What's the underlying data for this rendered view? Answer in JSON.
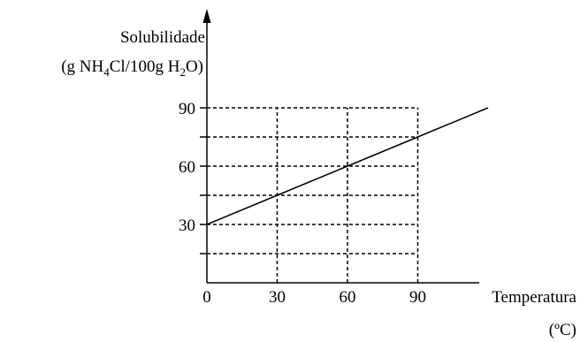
{
  "chart_data": {
    "type": "line",
    "y_title_line1": "Solubilidade",
    "y_title_line2": {
      "parts": [
        {
          "text": "(g NH",
          "sub": false
        },
        {
          "text": "4",
          "sub": true
        },
        {
          "text": "Cl/100g H",
          "sub": false
        },
        {
          "text": "2",
          "sub": true
        },
        {
          "text": "O)",
          "sub": false
        }
      ]
    },
    "xlabel": "Temperatura",
    "xlabel_unit": "(ºC)",
    "x_ticks": [
      "0",
      "30",
      "60",
      "90"
    ],
    "x_tick_values": [
      0,
      30,
      60,
      90
    ],
    "y_tick_labels": [
      "30",
      "60",
      "90"
    ],
    "y_tick_label_values": [
      30,
      60,
      90
    ],
    "y_ticks_minor": [
      15,
      45,
      75
    ],
    "xlim": [
      0,
      120
    ],
    "ylim": [
      0,
      100
    ],
    "grid": "dashed at x = 30, 60, 90 and y = 15, 30, 45, 60, 75, 90",
    "series": [
      {
        "x": [
          0,
          30,
          60,
          90,
          120
        ],
        "y": [
          30,
          45,
          60,
          75,
          90
        ]
      }
    ]
  }
}
